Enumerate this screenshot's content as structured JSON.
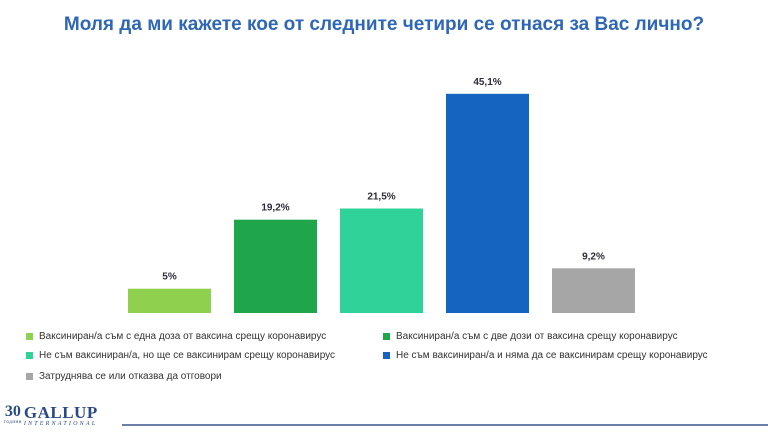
{
  "title": "Моля да ми кажете кое от следните четири се отнася за Вас лично?",
  "chart_data": {
    "type": "bar",
    "title": "Моля да ми кажете кое от следните четири се отнася за Вас лично?",
    "xlabel": "",
    "ylabel": "",
    "ylim": [
      0,
      50
    ],
    "grid": false,
    "legend_position": "bottom",
    "categories": [
      "Ваксиниран/а съм с една доза от ваксина срещу коронавирус",
      "Ваксиниран/а съм с две дози от ваксина срещу коронавирус",
      "Не съм ваксиниран/а, но ще се ваксинирам срещу коронавирус",
      "Не съм ваксиниран/а и няма да се ваксинирам срещу коронавирус",
      "Затруднява се или отказва да отговори"
    ],
    "values": [
      5,
      19.2,
      21.5,
      45.1,
      9.2
    ],
    "value_labels": [
      "5%",
      "19,2%",
      "21,5%",
      "45,1%",
      "9,2%"
    ],
    "colors": [
      "#8fd14f",
      "#1fa64a",
      "#2fd39a",
      "#1565c0",
      "#a6a6a6"
    ]
  },
  "legend": [
    {
      "label": "Ваксиниран/а съм с една доза от ваксина срещу коронавирус",
      "color": "#8fd14f"
    },
    {
      "label": "Ваксиниран/а съм с две дози от ваксина срещу коронавирус",
      "color": "#1fa64a"
    },
    {
      "label": "Не съм ваксиниран/а, но ще се ваксинирам срещу коронавирус",
      "color": "#2fd39a"
    },
    {
      "label": "Не съм ваксиниран/а и няма да се ваксинирам срещу коронавирус",
      "color": "#1565c0"
    },
    {
      "label": "Затруднява се или отказва да отговори",
      "color": "#a6a6a6"
    }
  ],
  "logo": {
    "years": "30",
    "years_text": "години",
    "name": "GALLUP",
    "sub": "INTERNATIONAL"
  }
}
